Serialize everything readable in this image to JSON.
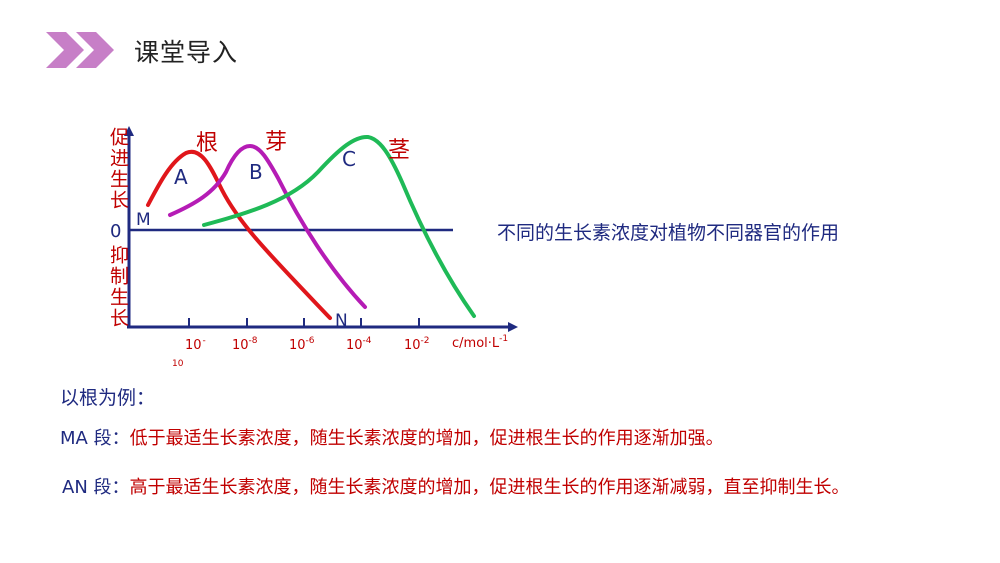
{
  "header": {
    "title": "课堂导入",
    "accent_color": "#c77fc7",
    "icon": "double-chevron-icon"
  },
  "diagram": {
    "y_axis_top_label": "促进生长",
    "y_axis_bottom_label": "抑制生长",
    "zero_label": "0",
    "x_axis_unit": "c/mol·L",
    "x_axis_unit_exp": "-1",
    "x_ticks": [
      {
        "base": "10",
        "exp": "-10"
      },
      {
        "base": "10",
        "exp": "-8"
      },
      {
        "base": "10",
        "exp": "-6"
      },
      {
        "base": "10",
        "exp": "-4"
      },
      {
        "base": "10",
        "exp": "-2"
      }
    ],
    "curve_labels": {
      "root": "根",
      "bud": "芽",
      "stem": "茎"
    },
    "point_labels": {
      "A": "A",
      "B": "B",
      "C": "C",
      "M": "M",
      "N": "N"
    },
    "colors": {
      "axis": "#1f2a80",
      "root": "#e0161b",
      "bud": "#b51cb5",
      "stem": "#1fba57",
      "label_red": "#c00000",
      "label_dark": "#1f2a80"
    }
  },
  "caption": "不同的生长素浓度对植物不同器官的作用",
  "example": {
    "intro": "以根为例：",
    "segments": [
      {
        "label": "MA 段：",
        "text": "低于最适生长素浓度，随生长素浓度的增加，促进根生长的作用逐渐加强。"
      },
      {
        "label": "AN 段：",
        "text": "高于最适生长素浓度，随生长素浓度的增加，促进根生长的作用逐渐减弱，直至抑制生长。"
      }
    ]
  }
}
